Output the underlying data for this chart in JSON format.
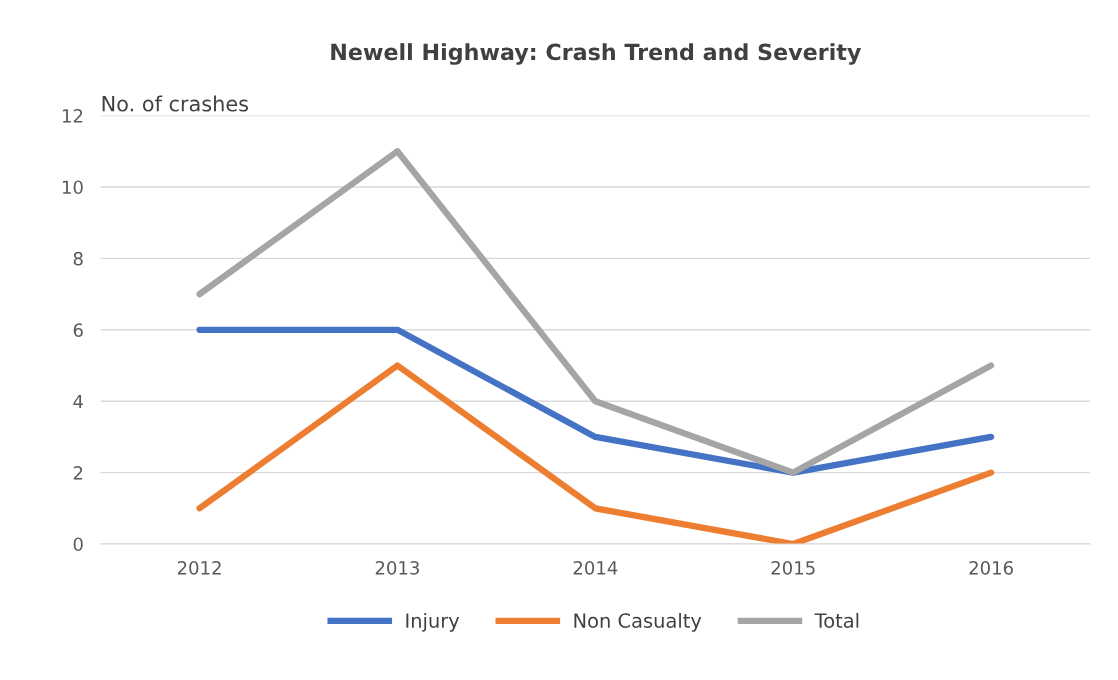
{
  "chart_data": {
    "type": "line",
    "title": "Newell Highway: Crash Trend and Severity",
    "ylabel": "No. of crashes",
    "categories": [
      "2012",
      "2013",
      "2014",
      "2015",
      "2016"
    ],
    "series": [
      {
        "name": "Injury",
        "color": "#4472c4",
        "values": [
          6,
          6,
          3,
          2,
          3
        ]
      },
      {
        "name": "Non Casualty",
        "color": "#ed7d31",
        "values": [
          1,
          5,
          1,
          0,
          2
        ]
      },
      {
        "name": "Total",
        "color": "#a5a5a5",
        "values": [
          7,
          11,
          4,
          2,
          5
        ]
      }
    ],
    "ylim": [
      0,
      12
    ],
    "yticks": [
      0,
      2,
      4,
      6,
      8,
      10,
      12
    ],
    "grid": "y",
    "legend": "bottom",
    "marker": "none",
    "line_style": "solid"
  }
}
